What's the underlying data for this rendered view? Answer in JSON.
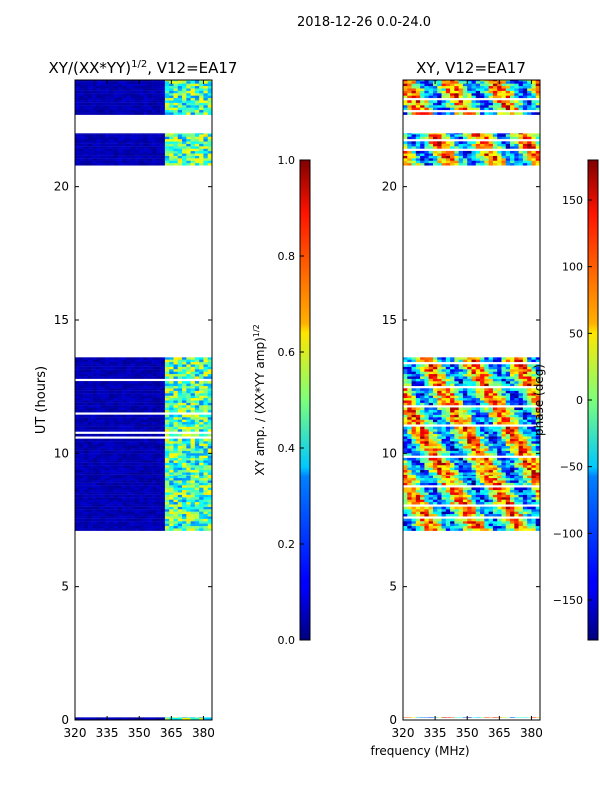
{
  "suptitle": "2018-12-26 0.0-24.0",
  "chart_data": [
    {
      "type": "heatmap",
      "title": "XY/(XX*YY)^{1/2}, V12=EA17",
      "title_main": "XY/(XX*YY)",
      "title_sup": "1/2",
      "title_tail": ", V12=EA17",
      "xlabel": "",
      "ylabel": "UT (hours)",
      "xlim": [
        320,
        384
      ],
      "ylim": [
        0,
        24
      ],
      "xticks": [
        320,
        335,
        350,
        365,
        380
      ],
      "yticks": [
        0,
        5,
        10,
        15,
        20
      ],
      "colormap": "jet",
      "colorbar": {
        "label_main": "XY amp. / (XX*YY amp)",
        "label_sup": "1/2",
        "range": [
          0.0,
          1.0
        ],
        "ticks": [
          0.0,
          0.2,
          0.4,
          0.6,
          0.8,
          1.0
        ],
        "tick_labels": [
          "0.0",
          "0.2",
          "0.4",
          "0.6",
          "0.8",
          "1.0"
        ]
      },
      "data_bands_hours": [
        [
          0.0,
          0.1
        ],
        [
          7.1,
          9.2
        ],
        [
          9.2,
          13.6
        ],
        [
          20.8,
          22.0
        ],
        [
          22.7,
          24.0
        ]
      ],
      "bright_channels_MHz": [
        362,
        384
      ]
    },
    {
      "type": "heatmap",
      "title": "XY, V12=EA17",
      "xlabel": "frequency (MHz)",
      "ylabel": "",
      "xlim": [
        320,
        384
      ],
      "ylim": [
        0,
        24
      ],
      "xticks": [
        320,
        335,
        350,
        365,
        380
      ],
      "yticks": [
        0,
        5,
        10,
        15,
        20
      ],
      "colormap": "jet",
      "colorbar": {
        "label": "phase (deg)",
        "range": [
          -180,
          180
        ],
        "ticks": [
          -150,
          -100,
          -50,
          0,
          50,
          100,
          150
        ],
        "tick_labels": [
          "−150",
          "−100",
          "−50",
          "0",
          "50",
          "100",
          "150"
        ]
      },
      "data_bands_hours": [
        [
          0.0,
          0.1
        ],
        [
          7.1,
          9.2
        ],
        [
          9.2,
          13.6
        ],
        [
          20.8,
          22.0
        ],
        [
          22.7,
          24.0
        ]
      ]
    }
  ]
}
